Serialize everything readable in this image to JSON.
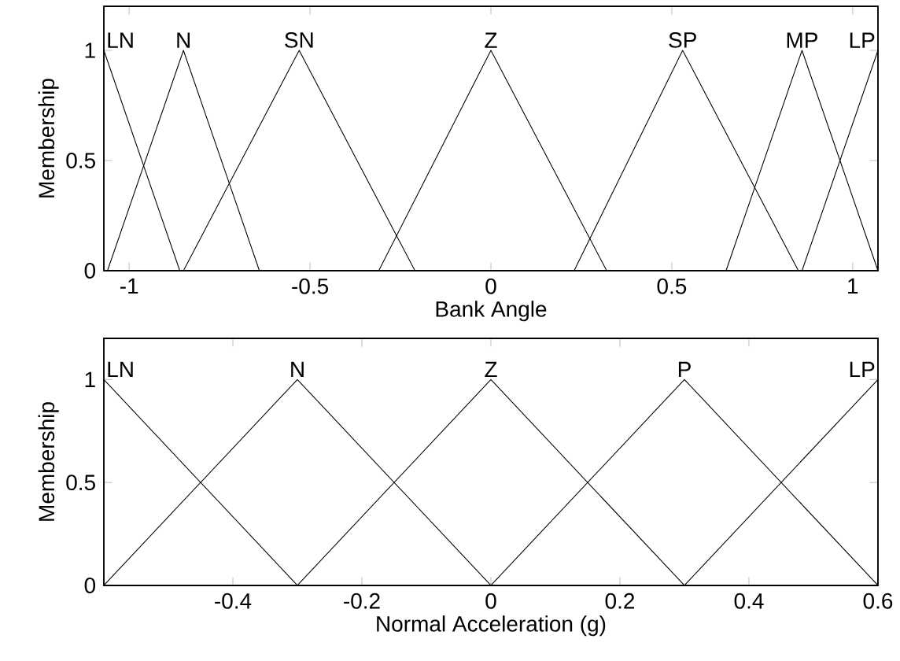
{
  "chart_data": [
    {
      "type": "line",
      "xlabel": "Bank Angle",
      "ylabel": "Membership",
      "xlim": [
        -1.07,
        1.07
      ],
      "ylim": [
        0,
        1.2
      ],
      "xticks": [
        -1,
        -0.5,
        0,
        0.5,
        1
      ],
      "yticks": [
        0,
        0.5,
        1
      ],
      "grid": false,
      "legend": false,
      "series": [
        {
          "name": "LN",
          "color": "#000000",
          "x": [
            -1.07,
            -0.86
          ],
          "values": [
            1,
            0
          ]
        },
        {
          "name": "N",
          "color": "#000000",
          "x": [
            -1.06,
            -0.85,
            -0.64
          ],
          "values": [
            0,
            1,
            0
          ]
        },
        {
          "name": "SN",
          "color": "#000000",
          "x": [
            -0.85,
            -0.53,
            -0.21
          ],
          "values": [
            0,
            1,
            0
          ]
        },
        {
          "name": "Z",
          "color": "#000000",
          "x": [
            -0.31,
            0,
            0.32
          ],
          "values": [
            0,
            1,
            0
          ]
        },
        {
          "name": "SP",
          "color": "#000000",
          "x": [
            0.23,
            0.53,
            0.85
          ],
          "values": [
            0,
            1,
            0
          ]
        },
        {
          "name": "MP",
          "color": "#000000",
          "x": [
            0.65,
            0.86,
            1.07
          ],
          "values": [
            0,
            1,
            0
          ]
        },
        {
          "name": "LP",
          "color": "#000000",
          "x": [
            0.86,
            1.07
          ],
          "values": [
            0,
            1
          ]
        }
      ]
    },
    {
      "type": "line",
      "xlabel": "Normal Acceleration (g)",
      "ylabel": "Membership",
      "xlim": [
        -0.6,
        0.6
      ],
      "ylim": [
        0,
        1.2
      ],
      "xticks": [
        {
          "value": -0.6,
          "label": null
        },
        -0.4,
        -0.2,
        0,
        0.2,
        0.4,
        0.6
      ],
      "yticks": [
        0,
        0.5,
        1
      ],
      "grid": false,
      "legend": false,
      "series": [
        {
          "name": "LN",
          "color": "#000000",
          "x": [
            -0.6,
            -0.3
          ],
          "values": [
            1,
            0
          ]
        },
        {
          "name": "N",
          "color": "#000000",
          "x": [
            -0.6,
            -0.3,
            0
          ],
          "values": [
            0,
            1,
            0
          ]
        },
        {
          "name": "Z",
          "color": "#000000",
          "x": [
            -0.3,
            0,
            0.3
          ],
          "values": [
            0,
            1,
            0
          ]
        },
        {
          "name": "P",
          "color": "#000000",
          "x": [
            0,
            0.3,
            0.6
          ],
          "values": [
            0,
            1,
            0
          ]
        },
        {
          "name": "LP",
          "color": "#000000",
          "x": [
            0.3,
            0.6
          ],
          "values": [
            0,
            1
          ]
        }
      ]
    }
  ]
}
